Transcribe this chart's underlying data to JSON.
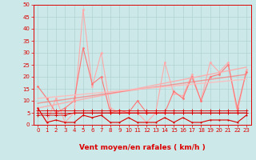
{
  "x": [
    0,
    1,
    2,
    3,
    4,
    5,
    6,
    7,
    8,
    9,
    10,
    11,
    12,
    13,
    14,
    15,
    16,
    17,
    18,
    19,
    20,
    21,
    22,
    23
  ],
  "series_rafales": [
    7,
    1,
    11,
    1,
    5,
    48,
    16,
    30,
    7,
    5,
    5,
    5,
    1,
    5,
    26,
    13,
    12,
    21,
    10,
    26,
    22,
    26,
    5,
    23
  ],
  "series_moyen": [
    16,
    11,
    5,
    7,
    10,
    32,
    17,
    20,
    5,
    6,
    5,
    10,
    5,
    5,
    5,
    14,
    11,
    20,
    10,
    20,
    21,
    25,
    7,
    22
  ],
  "series_flat1": [
    6,
    6,
    6,
    6,
    6,
    6,
    6,
    6,
    6,
    6,
    6,
    6,
    6,
    6,
    6,
    6,
    6,
    6,
    6,
    6,
    6,
    6,
    6,
    6
  ],
  "series_flat2": [
    5,
    5,
    5,
    5,
    5,
    5,
    5,
    5,
    5,
    5,
    5,
    5,
    5,
    5,
    5,
    5,
    5,
    5,
    5,
    5,
    5,
    5,
    5,
    5
  ],
  "series_flat3": [
    4,
    4,
    4,
    4,
    5,
    5,
    5,
    5,
    5,
    5,
    5,
    5,
    5,
    5,
    5,
    5,
    5,
    5,
    5,
    5,
    5,
    5,
    5,
    5
  ],
  "series_min": [
    7,
    1,
    2,
    1,
    1,
    4,
    3,
    4,
    1,
    1,
    3,
    1,
    1,
    1,
    3,
    1,
    3,
    1,
    1,
    2,
    2,
    2,
    1,
    4
  ],
  "trend1_y": [
    7,
    24
  ],
  "trend2_y": [
    9,
    21
  ],
  "trend3_y": [
    11,
    19
  ],
  "arrows": [
    "←",
    "↓",
    "↑",
    "↓",
    "→",
    "↙",
    "↙",
    "↓",
    "←",
    "↘",
    "→",
    "↓",
    "↖",
    "↓",
    "↓",
    "↓",
    "↓",
    "↙",
    "↖",
    "↘",
    "↓",
    "↑",
    "→",
    "↗"
  ],
  "xlabel": "Vent moyen/en rafales ( km/h )",
  "ylim": [
    0,
    50
  ],
  "xlim": [
    -0.5,
    23.5
  ],
  "yticks": [
    0,
    5,
    10,
    15,
    20,
    25,
    30,
    35,
    40,
    45,
    50
  ],
  "xticks": [
    0,
    1,
    2,
    3,
    4,
    5,
    6,
    7,
    8,
    9,
    10,
    11,
    12,
    13,
    14,
    15,
    16,
    17,
    18,
    19,
    20,
    21,
    22,
    23
  ],
  "bg_color": "#cce8e8",
  "grid_color": "#aacccc",
  "col_light": "#ffaaaa",
  "col_mid": "#ff7777",
  "col_dark": "#dd0000",
  "col_trend": "#ffbbbb"
}
